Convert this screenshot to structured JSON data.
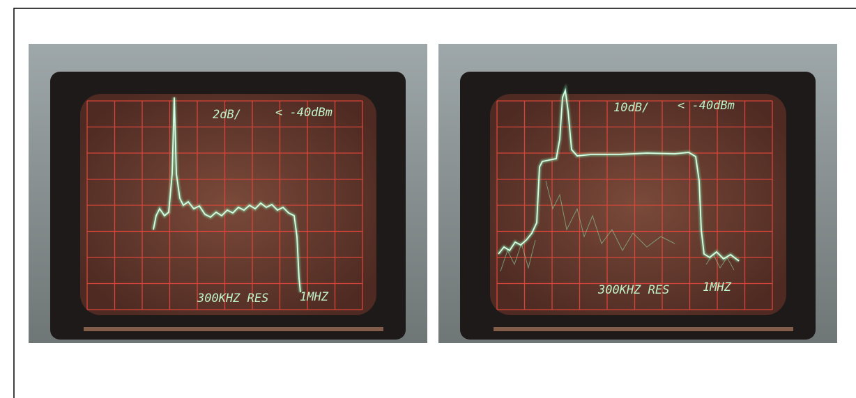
{
  "panels": [
    {
      "scale": "2dB/",
      "reference": "< -40dBm",
      "resolution": "300KHZ RES",
      "span": "1MHZ"
    },
    {
      "scale": "10dB/",
      "reference": "< -40dBm",
      "resolution": "300KHZ RES",
      "span": "1MHZ"
    }
  ]
}
